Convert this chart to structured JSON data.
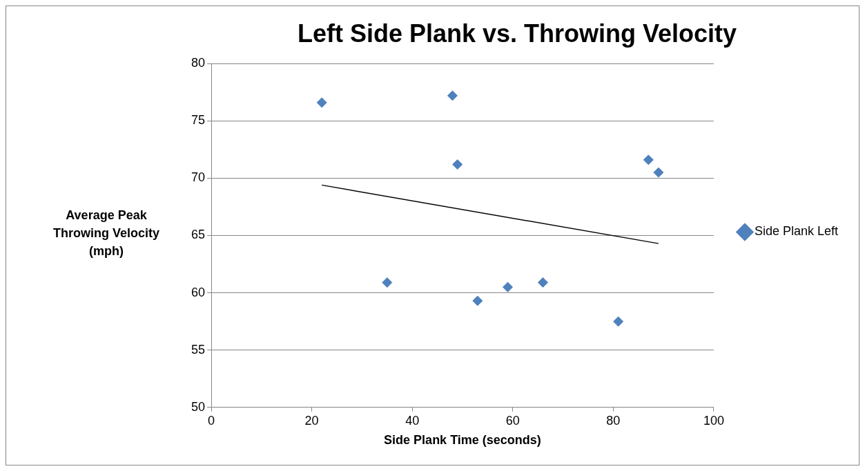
{
  "chart_data": {
    "type": "scatter",
    "title": "Left Side Plank vs. Throwing Velocity",
    "xlabel": "Side Plank Time (seconds)",
    "ylabel": "Average Peak Throwing Velocity (mph)",
    "xlim": [
      0,
      100
    ],
    "xticks": [
      0,
      20,
      40,
      60,
      80,
      100
    ],
    "ylim": [
      50,
      80
    ],
    "yticks": [
      50,
      55,
      60,
      65,
      70,
      75,
      80
    ],
    "grid": "y",
    "legend": "right",
    "marker": "diamond",
    "series": [
      {
        "name": "Side Plank Left",
        "type": "scatter",
        "color": "#4f81bd",
        "x": [
          22,
          48,
          49,
          87,
          89,
          35,
          53,
          59,
          66,
          81
        ],
        "values": [
          76.6,
          77.2,
          71.2,
          71.6,
          70.5,
          60.9,
          59.3,
          60.5,
          60.9,
          57.5
        ]
      },
      {
        "type": "line",
        "color": "#000000",
        "marker": "none",
        "x": [
          22,
          89
        ],
        "values": [
          69.4,
          64.3
        ]
      }
    ]
  }
}
